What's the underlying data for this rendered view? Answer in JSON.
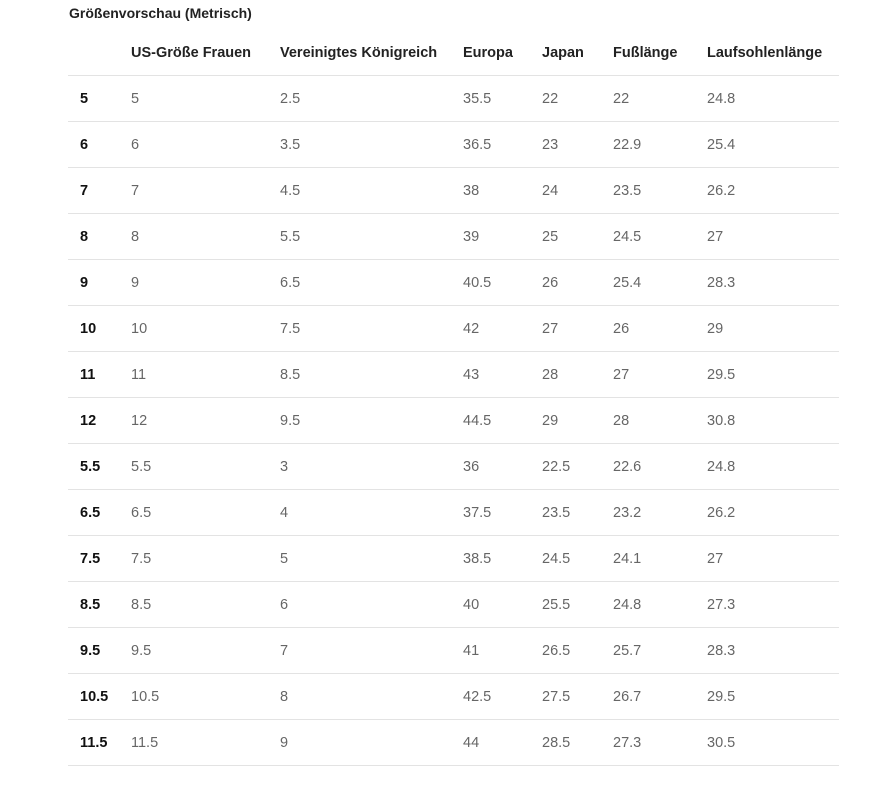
{
  "title": "Größenvorschau (Metrisch)",
  "columns": [
    "",
    "US-Größe Frauen",
    "Vereinigtes Königreich",
    "Europa",
    "Japan",
    "Fußlänge",
    "Laufsohlenlänge"
  ],
  "rows": [
    [
      "5",
      "5",
      "2.5",
      "35.5",
      "22",
      "22",
      "24.8"
    ],
    [
      "6",
      "6",
      "3.5",
      "36.5",
      "23",
      "22.9",
      "25.4"
    ],
    [
      "7",
      "7",
      "4.5",
      "38",
      "24",
      "23.5",
      "26.2"
    ],
    [
      "8",
      "8",
      "5.5",
      "39",
      "25",
      "24.5",
      "27"
    ],
    [
      "9",
      "9",
      "6.5",
      "40.5",
      "26",
      "25.4",
      "28.3"
    ],
    [
      "10",
      "10",
      "7.5",
      "42",
      "27",
      "26",
      "29"
    ],
    [
      "11",
      "11",
      "8.5",
      "43",
      "28",
      "27",
      "29.5"
    ],
    [
      "12",
      "12",
      "9.5",
      "44.5",
      "29",
      "28",
      "30.8"
    ],
    [
      "5.5",
      "5.5",
      "3",
      "36",
      "22.5",
      "22.6",
      "24.8"
    ],
    [
      "6.5",
      "6.5",
      "4",
      "37.5",
      "23.5",
      "23.2",
      "26.2"
    ],
    [
      "7.5",
      "7.5",
      "5",
      "38.5",
      "24.5",
      "24.1",
      "27"
    ],
    [
      "8.5",
      "8.5",
      "6",
      "40",
      "25.5",
      "24.8",
      "27.3"
    ],
    [
      "9.5",
      "9.5",
      "7",
      "41",
      "26.5",
      "25.7",
      "28.3"
    ],
    [
      "10.5",
      "10.5",
      "8",
      "42.5",
      "27.5",
      "26.7",
      "29.5"
    ],
    [
      "11.5",
      "11.5",
      "9",
      "44",
      "28.5",
      "27.3",
      "30.5"
    ]
  ]
}
